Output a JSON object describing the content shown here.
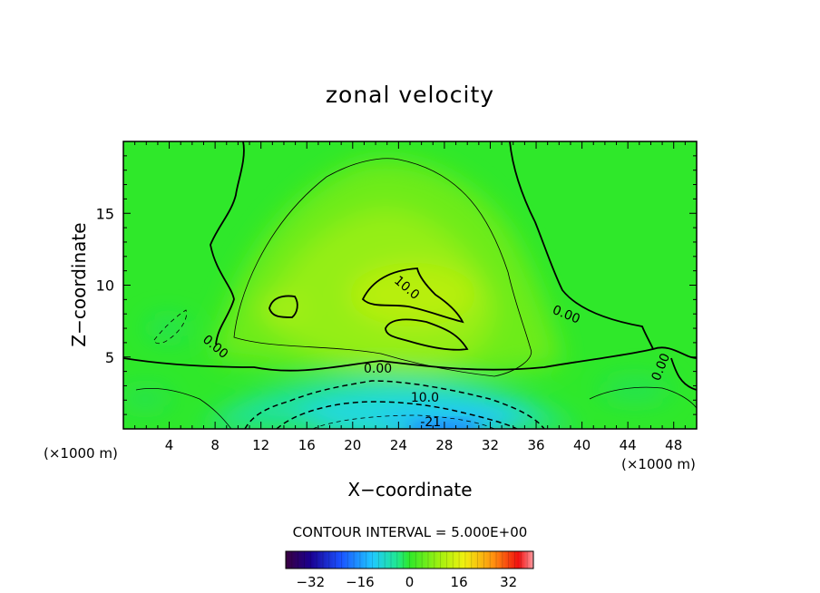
{
  "chart_data": {
    "type": "heatmap",
    "title": "zonal velocity",
    "xlabel": "X−coordinate",
    "ylabel": "Z−coordinate",
    "x_unit_left": "(×1000 m)",
    "x_unit_right": "(×1000 m)",
    "xlim": [
      0,
      50
    ],
    "ylim": [
      0,
      20
    ],
    "x_ticks": [
      4,
      8,
      12,
      16,
      20,
      24,
      28,
      32,
      36,
      40,
      44,
      48
    ],
    "y_ticks": [
      5,
      10,
      15
    ],
    "grid": false,
    "contour_interval_text": "CONTOUR INTERVAL = 5.000E+00",
    "contour_labels": [
      {
        "text": "10.0",
        "x": 24.5,
        "z": 9.6,
        "angle": 40
      },
      {
        "text": "0.00",
        "x": 7.8,
        "z": 5.5,
        "angle": 40
      },
      {
        "text": "0.00",
        "x": 38.5,
        "z": 7.7,
        "angle": 22
      },
      {
        "text": "0.00",
        "x": 22.2,
        "z": 3.9,
        "angle": 0
      },
      {
        "text": "10.0",
        "x": 26.3,
        "z": 1.9,
        "angle": 0
      },
      {
        "text": "0.00",
        "x": 47.2,
        "z": 4.2,
        "angle": -68
      },
      {
        "text": "-21",
        "x": 26.8,
        "z": 0.2,
        "angle": 0
      }
    ],
    "colorbar": {
      "range": [
        -40,
        40
      ],
      "ticks": [
        "−32",
        "−16",
        "0",
        "16",
        "32"
      ],
      "tick_values": [
        -32,
        -16,
        0,
        16,
        32
      ]
    },
    "colors": {
      "background_field": "#2fe82a",
      "high_core": "#b8ef10",
      "low_core": "#20c8ff"
    }
  }
}
